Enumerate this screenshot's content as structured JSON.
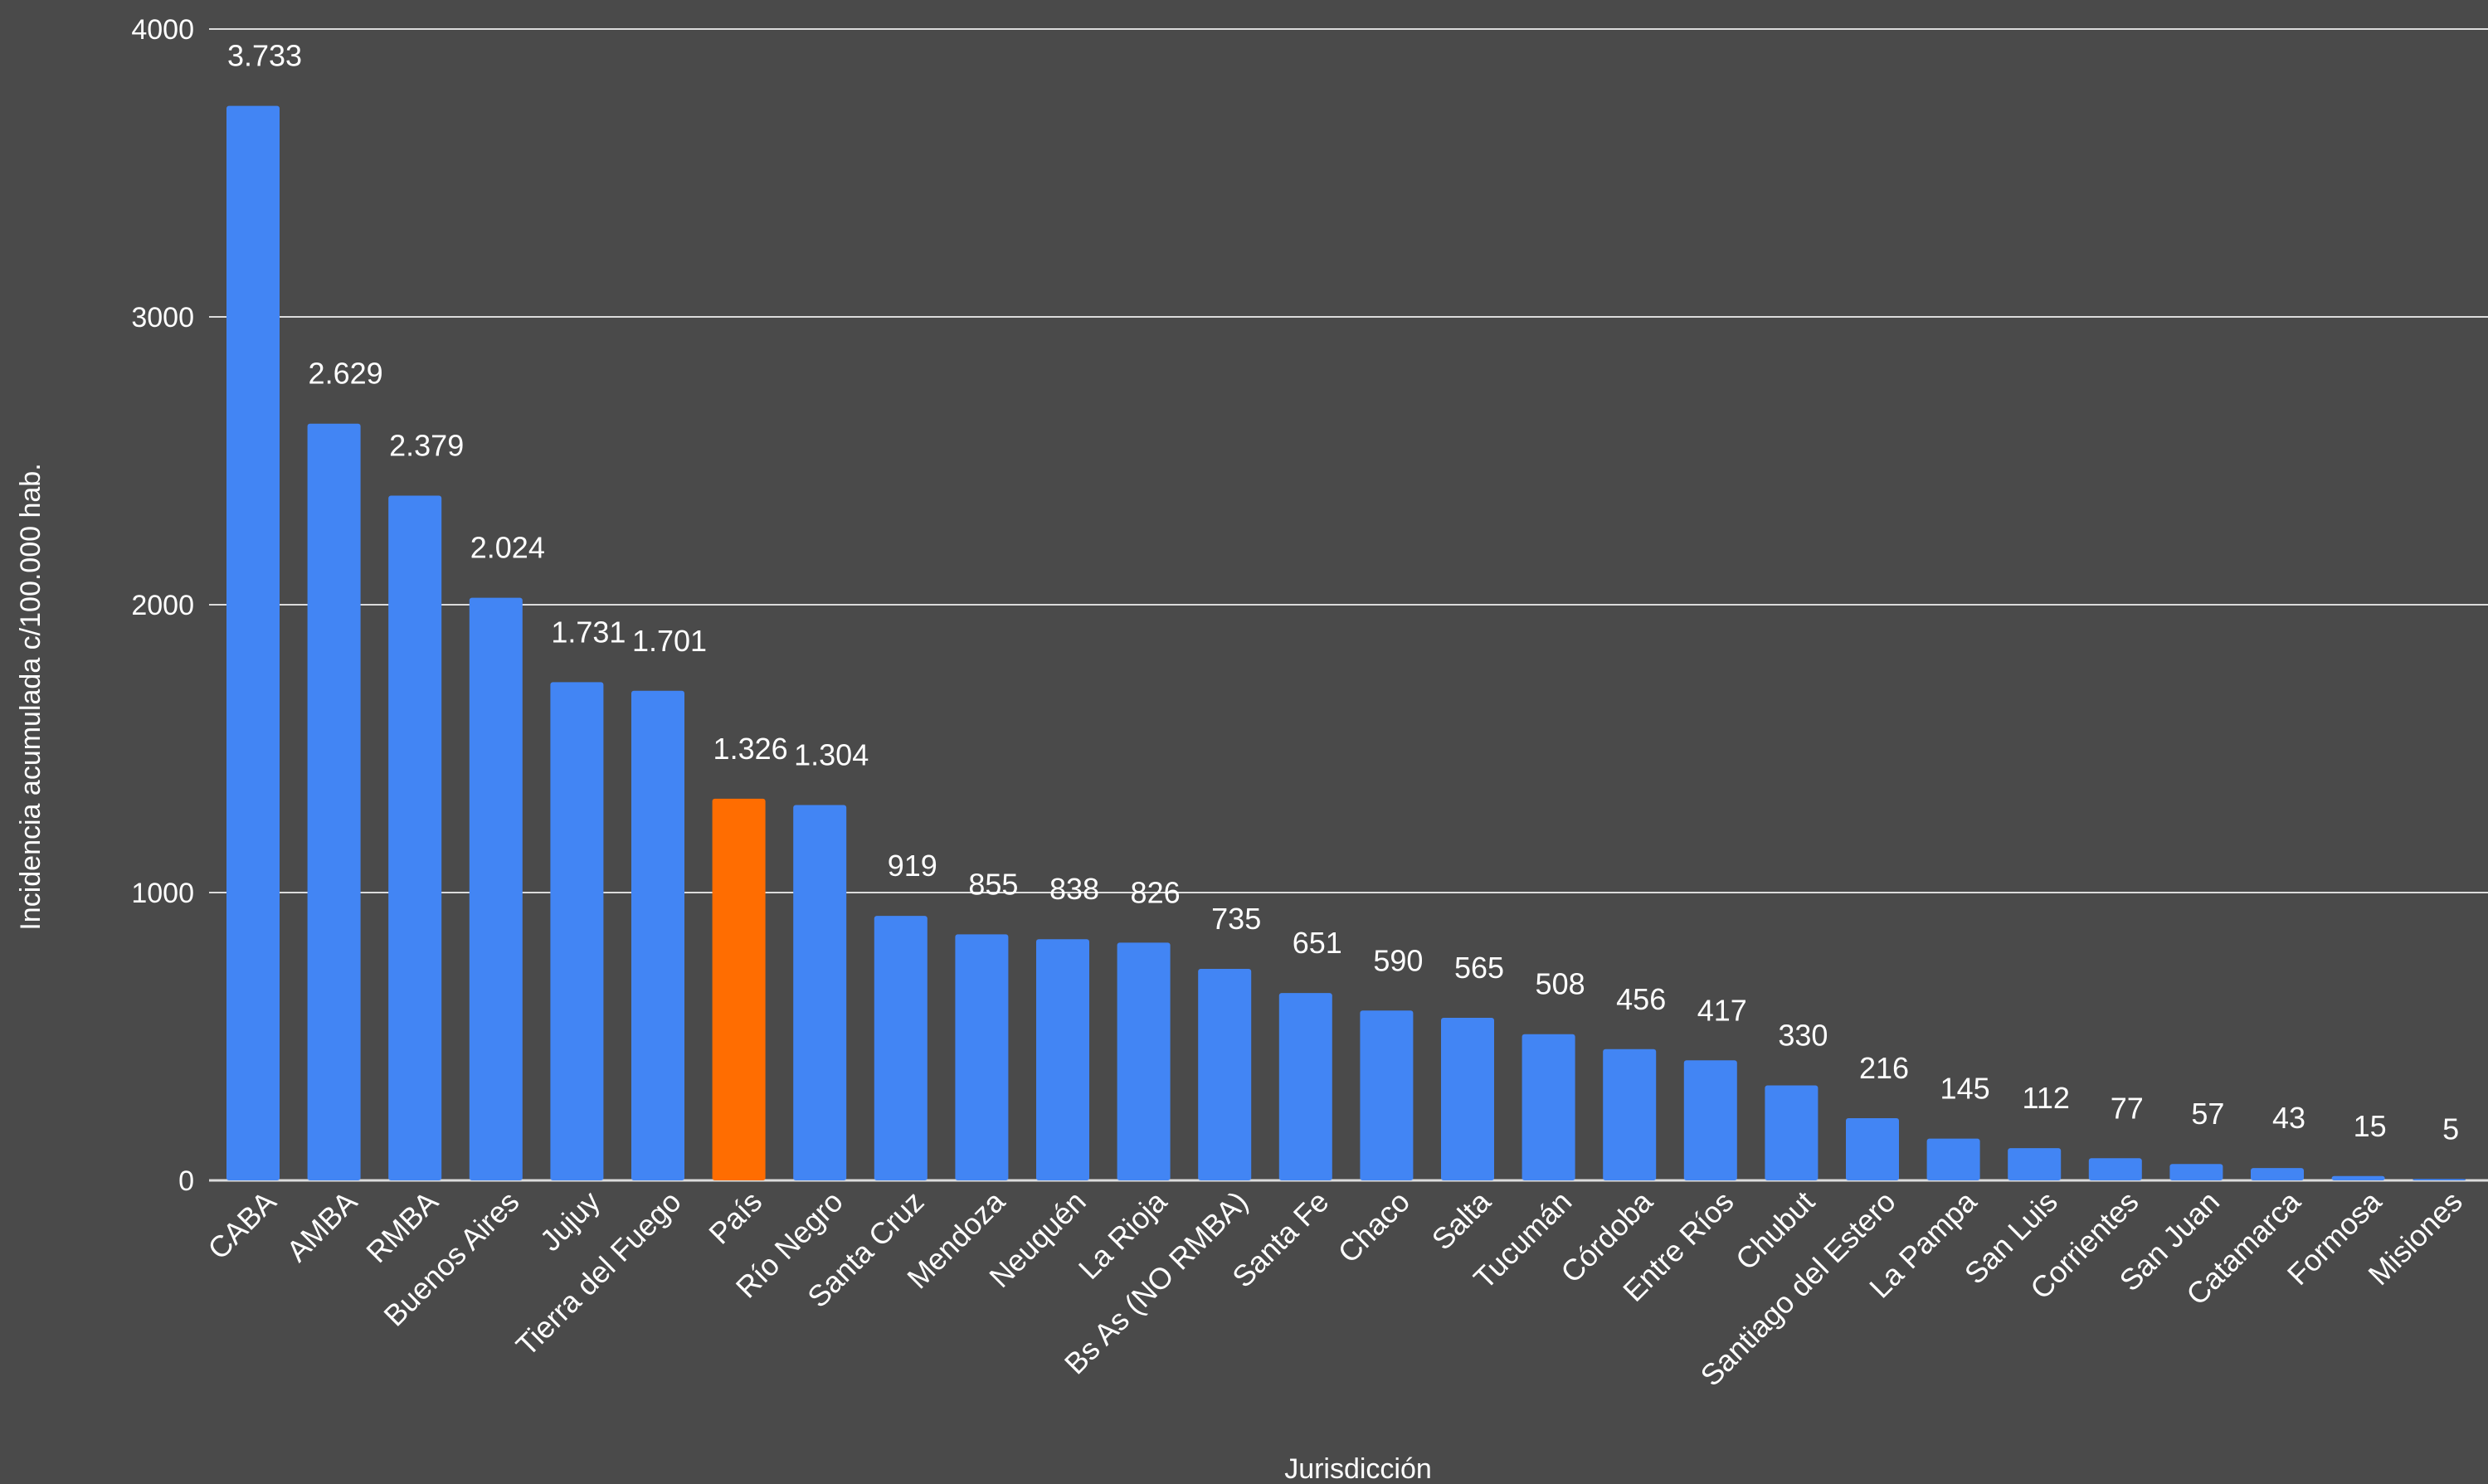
{
  "chart_data": {
    "type": "bar",
    "title": "",
    "xlabel": "Jurisdicción",
    "ylabel": "Incidencia acumulada c/100.000 hab.",
    "ylim": [
      0,
      4000
    ],
    "yticks": [
      "0",
      "1000",
      "2000",
      "3000",
      "4000"
    ],
    "ytick_values": [
      0,
      1000,
      2000,
      3000,
      4000
    ],
    "grid": true,
    "categories": [
      "CABA",
      "AMBA",
      "RMBA",
      "Buenos Aires",
      "Jujuy",
      "Tierra del Fuego",
      "País",
      "Río Negro",
      "Santa Cruz",
      "Mendoza",
      "Neuquén",
      "La Rioja",
      "Bs As (NO RMBA)",
      "Santa Fe",
      "Chaco",
      "Salta",
      "Tucumán",
      "Córdoba",
      "Entre Ríos",
      "Chubut",
      "Santiago del Estero",
      "La Pampa",
      "San Luis",
      "Corrientes",
      "San Juan",
      "Catamarca",
      "Formosa",
      "Misiones"
    ],
    "values": [
      3733,
      2629,
      2379,
      2024,
      1731,
      1701,
      1326,
      1304,
      919,
      855,
      838,
      826,
      735,
      651,
      590,
      565,
      508,
      456,
      417,
      330,
      216,
      145,
      112,
      77,
      57,
      43,
      15,
      5
    ],
    "value_labels": [
      "3.733",
      "2.629",
      "2.379",
      "2.024",
      "1.731",
      "1.701",
      "1.326",
      "1.304",
      "919",
      "855",
      "838",
      "826",
      "735",
      "651",
      "590",
      "565",
      "508",
      "456",
      "417",
      "330",
      "216",
      "145",
      "112",
      "77",
      "57",
      "43",
      "15",
      "5"
    ],
    "highlight_category": "País",
    "colors": {
      "background": "#4a4a4a",
      "bar": "#4285f4",
      "highlight": "#ff6d01",
      "gridline": "#dcdcdc",
      "text": "#ffffff"
    }
  }
}
